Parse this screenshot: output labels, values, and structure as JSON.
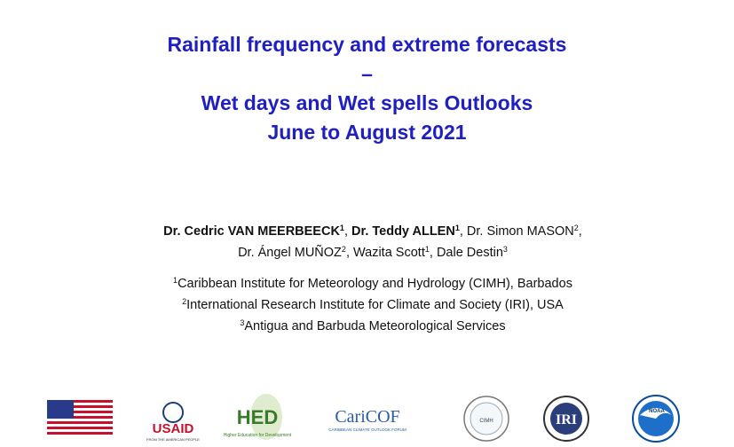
{
  "title": {
    "lines": [
      "Rainfall frequency and extreme forecasts",
      "–",
      "Wet days and Wet spells Outlooks",
      "June to August 2021"
    ]
  },
  "authors": {
    "lines": [
      [
        {
          "name": "Dr. Cedric VAN MEERBEECK",
          "sup": "1",
          "bold": true,
          "after": ", "
        },
        {
          "name": "Dr. Teddy ALLEN",
          "sup": "1",
          "bold": true,
          "after": ", "
        },
        {
          "name": "Dr. Simon MASON",
          "sup": "2",
          "bold": false,
          "after": ","
        }
      ],
      [
        {
          "name": "Dr. Ángel MUÑOZ",
          "sup": "2",
          "bold": false,
          "after": ", "
        },
        {
          "name": "Wazita Scott",
          "sup": "1",
          "bold": false,
          "after": ", "
        },
        {
          "name": "Dale Destin",
          "sup": "3",
          "bold": false
        }
      ]
    ]
  },
  "affiliations": [
    {
      "sup": "1",
      "text": "Caribbean Institute for Meteorology and Hydrology (CIMH), Barbados"
    },
    {
      "sup": "2",
      "text": "International Research Institute for Climate and Society (IRI), USA"
    },
    {
      "sup": "3",
      "text": "Antigua and Barbuda Meteorological Services"
    }
  ],
  "logos": {
    "usaid": "USAID",
    "usaid_tagline": "FROM THE AMERICAN PEOPLE",
    "hed": "HED",
    "hed_tagline": "Higher Education for Development",
    "caricof": "CariCOF",
    "caricof_tagline": "CARIBBEAN CLIMATE OUTLOOK FORUM",
    "cimh": "CIMH",
    "iri": "IRI",
    "noaa": "NOAA"
  }
}
